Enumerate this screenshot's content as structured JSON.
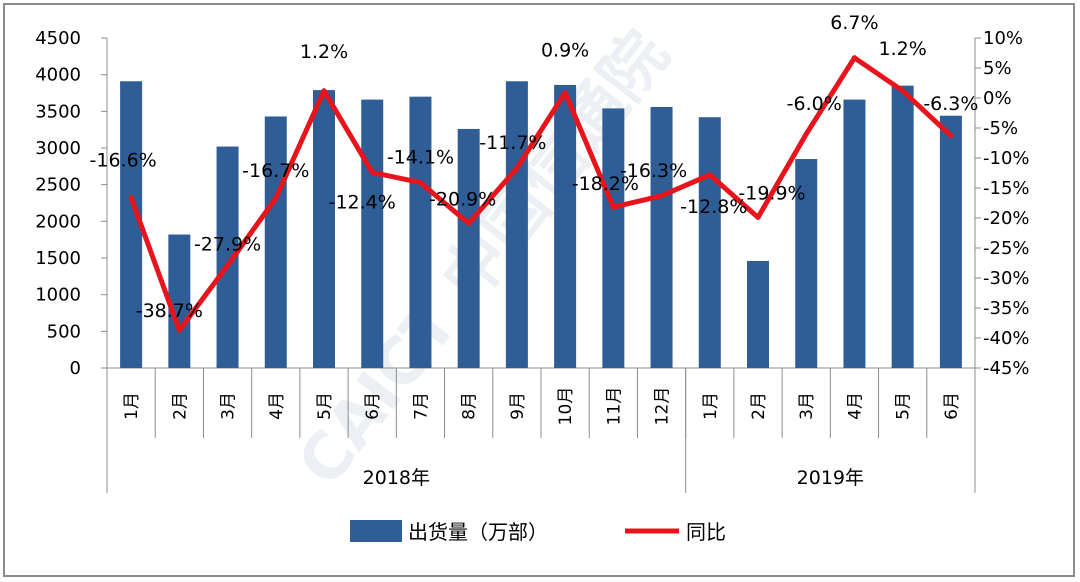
{
  "chart_data": {
    "type": "bar+line",
    "title": "",
    "watermark": "CAICT 中国信通院",
    "categories": [
      "1月",
      "2月",
      "3月",
      "4月",
      "5月",
      "6月",
      "7月",
      "8月",
      "9月",
      "10月",
      "11月",
      "12月",
      "1月",
      "2月",
      "3月",
      "4月",
      "5月",
      "6月"
    ],
    "groups": [
      {
        "label": "2018年",
        "count": 12
      },
      {
        "label": "2019年",
        "count": 6
      }
    ],
    "series": [
      {
        "name": "出货量（万部）",
        "type": "bar",
        "axis": "left",
        "color": "#2f5d96",
        "values": [
          3910,
          1820,
          3020,
          3430,
          3790,
          3660,
          3700,
          3260,
          3910,
          3860,
          3540,
          3560,
          3420,
          1460,
          2850,
          3660,
          3850,
          3440
        ]
      },
      {
        "name": "同比",
        "type": "line",
        "axis": "right",
        "color": "#e8141c",
        "values": [
          -16.6,
          -38.7,
          -27.9,
          -16.7,
          1.2,
          -12.4,
          -14.1,
          -20.9,
          -11.7,
          0.9,
          -18.2,
          -16.3,
          -12.8,
          -19.9,
          -6.0,
          6.7,
          1.2,
          -6.3
        ],
        "labels": [
          "-16.6%",
          "-38.7%",
          "-27.9%",
          "-16.7%",
          "1.2%",
          "-12.4%",
          "-14.1%",
          "-20.9%",
          "-11.7%",
          "0.9%",
          "-18.2%",
          "-16.3%",
          "-12.8%",
          "-19.9%",
          "-6.0%",
          "6.7%",
          "1.2%",
          "-6.3%"
        ]
      }
    ],
    "y_left": {
      "min": 0,
      "max": 4500,
      "ticks": [
        "0",
        "500",
        "1000",
        "1500",
        "2000",
        "2500",
        "3000",
        "3500",
        "4000",
        "4500"
      ]
    },
    "y_right": {
      "min": -45,
      "max": 10,
      "ticks": [
        "-45%",
        "-40%",
        "-35%",
        "-30%",
        "-25%",
        "-20%",
        "-15%",
        "-10%",
        "-5%",
        "0%",
        "5%",
        "10%"
      ]
    },
    "legend_position": "bottom",
    "grid": false
  }
}
